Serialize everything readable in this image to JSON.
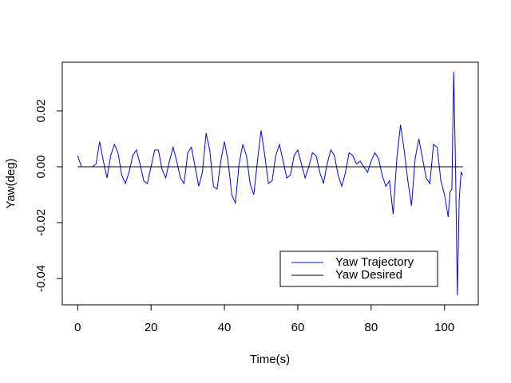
{
  "chart_data": {
    "type": "line",
    "xlabel": "Time(s)",
    "ylabel": "Yaw(deg)",
    "xlim": [
      -4.2,
      109.2
    ],
    "ylim": [
      -0.0494,
      0.0374
    ],
    "xticks": [
      0,
      20,
      40,
      60,
      80,
      100
    ],
    "yticks": [
      -0.04,
      -0.02,
      {
        "value": 0,
        "label": "0.00"
      },
      0.02
    ],
    "legend": "bottomright",
    "series": [
      {
        "name": "Yaw Trajectory",
        "color": "#0000ff",
        "x": [
          0,
          1,
          2,
          3,
          4,
          5,
          6,
          7,
          8,
          9,
          10,
          11,
          12,
          13,
          14,
          15,
          16,
          17,
          18,
          19,
          20,
          21,
          22,
          23,
          24,
          25,
          26,
          27,
          28,
          29,
          30,
          31,
          32,
          33,
          34,
          35,
          36,
          37,
          38,
          39,
          40,
          41,
          42,
          43,
          44,
          45,
          46,
          47,
          48,
          49,
          50,
          51,
          52,
          53,
          54,
          55,
          56,
          57,
          58,
          59,
          60,
          61,
          62,
          63,
          64,
          65,
          66,
          67,
          68,
          69,
          70,
          71,
          72,
          73,
          74,
          75,
          76,
          77,
          78,
          79,
          80,
          81,
          82,
          83,
          84,
          85,
          86,
          87,
          88,
          89,
          90,
          91,
          92,
          93,
          94,
          95,
          96,
          97,
          98,
          99,
          100,
          101,
          101.5,
          102,
          102.5,
          103,
          103.5,
          104,
          104.5,
          105
        ],
        "values": [
          0.004,
          0.0,
          0.0,
          0.0,
          0.0,
          0.001,
          0.009,
          0.002,
          -0.004,
          0.004,
          0.008,
          0.005,
          -0.003,
          -0.006,
          -0.002,
          0.004,
          0.006,
          0.001,
          -0.005,
          -0.006,
          0.0,
          0.006,
          0.006,
          -0.001,
          -0.004,
          0.002,
          0.007,
          0.002,
          -0.004,
          -0.006,
          0.005,
          0.007,
          0.0,
          -0.007,
          -0.002,
          0.012,
          0.006,
          -0.007,
          -0.008,
          0.002,
          0.009,
          0.002,
          -0.01,
          -0.013,
          0.001,
          0.008,
          0.004,
          -0.006,
          -0.01,
          0.002,
          0.013,
          0.004,
          -0.006,
          -0.005,
          0.004,
          0.008,
          0.002,
          -0.004,
          -0.003,
          0.004,
          0.006,
          0.001,
          -0.004,
          0.0,
          0.005,
          0.004,
          -0.002,
          -0.006,
          0.001,
          0.006,
          0.004,
          -0.003,
          -0.007,
          -0.002,
          0.005,
          0.004,
          0.001,
          0.002,
          0.0,
          -0.002,
          0.002,
          0.005,
          0.003,
          -0.003,
          -0.007,
          -0.005,
          -0.017,
          0.003,
          0.015,
          0.006,
          -0.005,
          -0.014,
          0.003,
          0.01,
          0.003,
          -0.004,
          -0.006,
          0.008,
          0.007,
          -0.005,
          -0.01,
          -0.018,
          -0.009,
          -0.008,
          0.034,
          0.0,
          -0.046,
          -0.012,
          -0.002,
          -0.003
        ]
      },
      {
        "name": "Yaw Desired",
        "color": "#000000",
        "x": [
          0,
          105
        ],
        "values": [
          0,
          0
        ]
      }
    ]
  }
}
